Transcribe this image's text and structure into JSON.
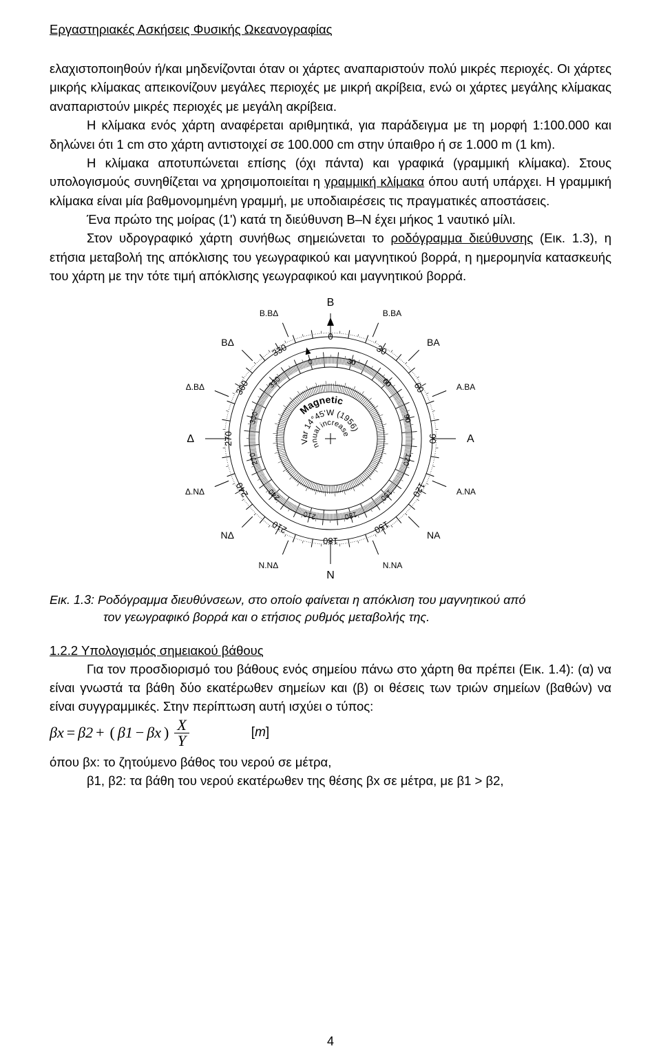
{
  "header": "Εργαστηριακές Ασκήσεις Φυσικής Ωκεανογραφίας",
  "para1_a": "ελαχιστοποιηθούν ή/και μηδενίζονται όταν οι χάρτες αναπαριστούν πολύ μικρές περιοχές. Οι χάρτες μικρής κλίμακας απεικονίζουν μεγάλες περιοχές με μικρή ακρίβεια, ενώ οι χάρτες μεγάλης κλίμακας αναπαριστούν μικρές περιοχές με μεγάλη ακρίβεια.",
  "para2": "Η κλίμακα ενός χάρτη αναφέρεται αριθμητικά, για παράδειγμα με τη μορφή 1:100.000 και δηλώνει ότι 1 cm στο χάρτη αντιστοιχεί  σε 100.000 cm στην ύπαιθρο ή σε 1.000 m (1 km).",
  "para3_a": "Η κλίμακα αποτυπώνεται επίσης (όχι πάντα) και γραφικά (γραμμική κλίμακα). Στους υπολογισμούς συνηθίζεται να χρησιμοποιείται η ",
  "para3_u": "γραμμική κλίμακα",
  "para3_b": " όπου αυτή υπάρχει. Η γραμμική κλίμακα είναι μία βαθμονομημένη γραμμή, με υποδιαιρέσεις τις πραγματικές αποστάσεις.",
  "para4": "Ένα πρώτο της μοίρας (1') κατά τη διεύθυνση Β–Ν έχει μήκος 1 ναυτικό μίλι.",
  "para5_a": "Στον υδρογραφικό χάρτη συνήθως σημειώνεται το ",
  "para5_u": "ροδόγραμμα διεύθυνσης",
  "para5_b": " (Εικ. 1.3), η ετήσια μεταβολή της απόκλισης του γεωγραφικού και μαγνητικού βορρά, η ημερομηνία κατασκευής του χάρτη με την τότε τιμή απόκλισης γεωγραφικού και μαγνητικού βορρά.",
  "compass": {
    "labels_outer": [
      "Β",
      "Β.ΒΑ",
      "ΒΑ",
      "Α.ΒΑ",
      "Α",
      "Α.ΝΑ",
      "ΝΑ",
      "Ν.ΝΑ",
      "Ν",
      "Ν.ΝΔ",
      "ΝΔ",
      "Δ.ΝΔ",
      "Δ",
      "Δ.ΒΔ",
      "ΒΔ",
      "Β.ΒΔ"
    ],
    "center_line1": "Magnetic",
    "center_line2": "Var 14°45'W (1956)",
    "center_line3": "Annual increase 2'",
    "outer_ticks": [
      "0",
      "30",
      "60",
      "90",
      "120",
      "150",
      "180",
      "210",
      "240",
      "270",
      "300",
      "330"
    ],
    "inner_rotation_deg": -14.75,
    "colors": {
      "stroke": "#000000",
      "bg": "#ffffff"
    }
  },
  "caption_a": "Εικ. 1.3: Ροδόγραμμα διευθύνσεων, στο οποίο φαίνεται η απόκλιση του μαγνητικού από",
  "caption_b": "τον γεωγραφικό βορρά και ο ετήσιος ρυθμός μεταβολής της.",
  "section_heading": "1.2.2 Υπολογισμός σημειακού βάθους",
  "para6": "Για τον προσδιορισμό του βάθους ενός σημείου πάνω στο χάρτη θα πρέπει (Εικ. 1.4): (α) να είναι γνωστά τα βάθη δύο εκατέρωθεν σημείων και (β) οι θέσεις των τριών σημείων (βαθών) να είναι συγγραμμικές. Στην περίπτωση αυτή ισχύει ο τύπος:",
  "formula": {
    "lhs": "βx",
    "eq": "=",
    "t1": "β2",
    "plus": "+",
    "lpar": "(",
    "t2": "β1",
    "minus": "−",
    "t3": "βx",
    "rpar": ")",
    "num": "X",
    "den": "Y",
    "unit": "[m]"
  },
  "para7": "όπου  βx: το ζητούμενο βάθος του νερού σε μέτρα,",
  "para8": "β1, β2: τα βάθη του νερού εκατέρωθεν της θέσης βx σε μέτρα, με β1 > β2,",
  "page_number": "4"
}
